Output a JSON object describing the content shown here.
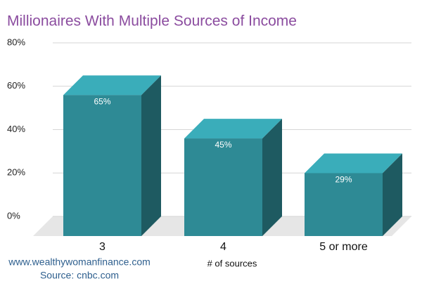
{
  "chart_data": {
    "type": "bar3d",
    "title": "Millionaires With Multiple Sources of Income",
    "categories": [
      "3",
      "4",
      "5 or more"
    ],
    "values": [
      65,
      45,
      29
    ],
    "value_labels": [
      "65%",
      "45%",
      "29%"
    ],
    "color": "#2e8a95",
    "xlabel": "# of sources",
    "ylim": [
      0,
      80
    ],
    "yticks": [
      {
        "value": 0,
        "label": "0%"
      },
      {
        "value": 20,
        "label": "20%"
      },
      {
        "value": 40,
        "label": "40%"
      },
      {
        "value": 60,
        "label": "60%"
      },
      {
        "value": 80,
        "label": "80%"
      }
    ],
    "grid": true,
    "footer": [
      "www.wealthywomanfinance.com",
      "Source: cnbc.com"
    ]
  }
}
